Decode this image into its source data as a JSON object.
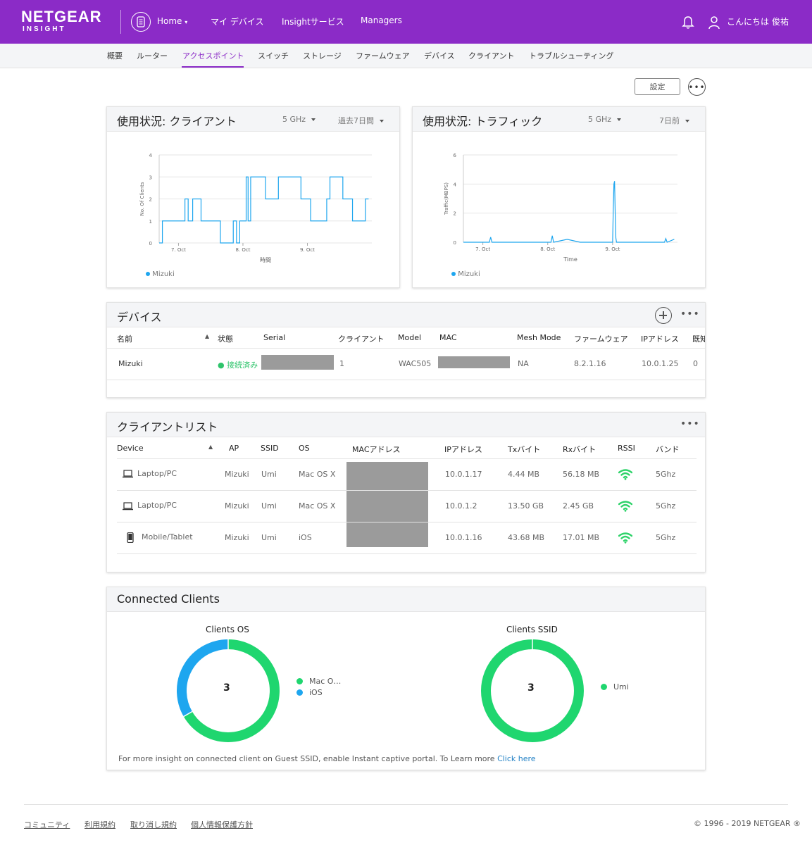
{
  "colors": {
    "brand": "#8b2bc7",
    "chart_line": "#1ea6ef",
    "green": "#1fd66f",
    "blue": "#1ea6ef",
    "link": "#1f7fc4",
    "status_ok": "#2ec46b"
  },
  "header": {
    "logo_main": "NETGEAR",
    "logo_sub": "INSIGHT",
    "home_label": "Home",
    "nav": [
      "マイ デバイス",
      "Insightサービス",
      "Managers"
    ],
    "greeting": "こんにちは 俊祐"
  },
  "subnav": {
    "items": [
      "概要",
      "ルーター",
      "アクセスポイント",
      "スイッチ",
      "ストレージ",
      "ファームウェア",
      "デバイス",
      "クライアント",
      "トラブルシューティング"
    ],
    "active": "アクセスポイント"
  },
  "toolbar": {
    "settings_label": "設定",
    "more_label": "•••"
  },
  "usage_clients": {
    "title": "使用状況: クライアント",
    "band": "5 GHz",
    "period": "過去7日間",
    "legend": "Mizuki"
  },
  "usage_traffic": {
    "title": "使用状況: トラフィック",
    "band": "5 GHz",
    "period": "7日前",
    "legend": "Mizuki"
  },
  "chart_data": [
    {
      "type": "line",
      "xlabel": "時間",
      "ylabel": "No. Of Clients",
      "ylim": [
        0,
        4
      ],
      "yticks": [
        "0",
        "1",
        "2",
        "3",
        "4"
      ],
      "xticks": [
        "7. Oct",
        "8. Oct",
        "9. Oct"
      ],
      "grid": true,
      "legend_position": "bottom-left",
      "series": [
        {
          "name": "Mizuki",
          "x": [
            "6.7",
            "6.75",
            "7.05",
            "7.1",
            "7.15",
            "7.22",
            "7.3",
            "7.35",
            "7.6",
            "7.65",
            "7.8",
            "7.85",
            "7.9",
            "7.95",
            "8.02",
            "8.05",
            "8.08",
            "8.12",
            "8.3",
            "8.35",
            "8.5",
            "8.55",
            "8.85",
            "8.9",
            "9.0",
            "9.05",
            "9.2",
            "9.3",
            "9.35",
            "9.5",
            "9.55",
            "9.65",
            "9.7",
            "9.85",
            "9.9",
            "9.95"
          ],
          "values": [
            0,
            1,
            1,
            2,
            1,
            2,
            2,
            1,
            1,
            0,
            0,
            1,
            0,
            1,
            1,
            3,
            1,
            3,
            3,
            2,
            2,
            3,
            3,
            2,
            2,
            1,
            1,
            2,
            3,
            3,
            2,
            2,
            1,
            1,
            2,
            2
          ]
        }
      ]
    },
    {
      "type": "line",
      "xlabel": "Time",
      "ylabel": "Traffic(MBPS)",
      "ylim": [
        0,
        6
      ],
      "yticks": [
        "0",
        "2",
        "4",
        "6"
      ],
      "xticks": [
        "7. Oct",
        "8. Oct",
        "9. Oct"
      ],
      "grid": true,
      "legend_position": "bottom-left",
      "series": [
        {
          "name": "Mizuki",
          "x": [
            "6.7",
            "6.95",
            "7.1",
            "7.12",
            "7.14",
            "7.3",
            "7.5",
            "7.9",
            "8.05",
            "8.07",
            "8.09",
            "8.3",
            "8.5",
            "8.9",
            "9.0",
            "9.01",
            "9.02",
            "9.03",
            "9.04",
            "9.05",
            "9.06",
            "9.5",
            "9.8",
            "9.82",
            "9.84",
            "9.95"
          ],
          "values": [
            0,
            0,
            0,
            0.35,
            0,
            0,
            0,
            0,
            0,
            0.45,
            0,
            0.2,
            0,
            0,
            0,
            2.2,
            4.0,
            4.2,
            2.0,
            0.3,
            0,
            0,
            0,
            0.25,
            0,
            0.2
          ]
        }
      ]
    }
  ],
  "devices": {
    "title": "デバイス",
    "columns": [
      "名前",
      "状態",
      "Serial",
      "クライアント",
      "Model",
      "MAC",
      "Mesh Mode",
      "ファームウェア",
      "IPアドレス",
      "既知"
    ],
    "rows": [
      {
        "name": "Mizuki",
        "status": "接続済み",
        "clients": "1",
        "model": "WAC505",
        "mesh": "NA",
        "firmware": "8.2.1.16",
        "ip": "10.0.1.25",
        "known": "0"
      }
    ]
  },
  "clients": {
    "title": "クライアントリスト",
    "columns": [
      "Device",
      "AP",
      "SSID",
      "OS",
      "MACアドレス",
      "IPアドレス",
      "Txバイト",
      "Rxバイト",
      "RSSI",
      "バンド"
    ],
    "rows": [
      {
        "device": "Laptop/PC",
        "icon": "laptop-icon",
        "ap": "Mizuki",
        "ssid": "Umi",
        "os": "Mac OS X",
        "ip": "10.0.1.17",
        "tx": "4.44 MB",
        "rx": "56.18 MB",
        "band": "5Ghz"
      },
      {
        "device": "Laptop/PC",
        "icon": "laptop-icon",
        "ap": "Mizuki",
        "ssid": "Umi",
        "os": "Mac OS X",
        "ip": "10.0.1.2",
        "tx": "13.50 GB",
        "rx": "2.45 GB",
        "band": "5Ghz"
      },
      {
        "device": "Mobile/Tablet",
        "icon": "mobile-icon",
        "ap": "Mizuki",
        "ssid": "Umi",
        "os": "iOS",
        "ip": "10.0.1.16",
        "tx": "43.68 MB",
        "rx": "17.01 MB",
        "band": "5Ghz"
      }
    ]
  },
  "connected": {
    "title": "Connected Clients",
    "os_title": "Clients OS",
    "os_total": "3",
    "os_segments": [
      {
        "label": "Mac O…",
        "value": 2,
        "color": "#1fd66f"
      },
      {
        "label": "iOS",
        "value": 1,
        "color": "#1ea6ef"
      }
    ],
    "ssid_title": "Clients SSID",
    "ssid_total": "3",
    "ssid_segments": [
      {
        "label": "Umi",
        "value": 3,
        "color": "#1fd66f"
      }
    ],
    "footnote": "For more insight on connected client on Guest SSID, enable Instant captive portal. To Learn more ",
    "footnote_link": "Click here"
  },
  "footer": {
    "links": [
      "コミュニティ",
      "利用規約",
      "取り消し規約",
      "個人情報保護方針"
    ],
    "copyright": "© 1996 - 2019 NETGEAR ®"
  }
}
